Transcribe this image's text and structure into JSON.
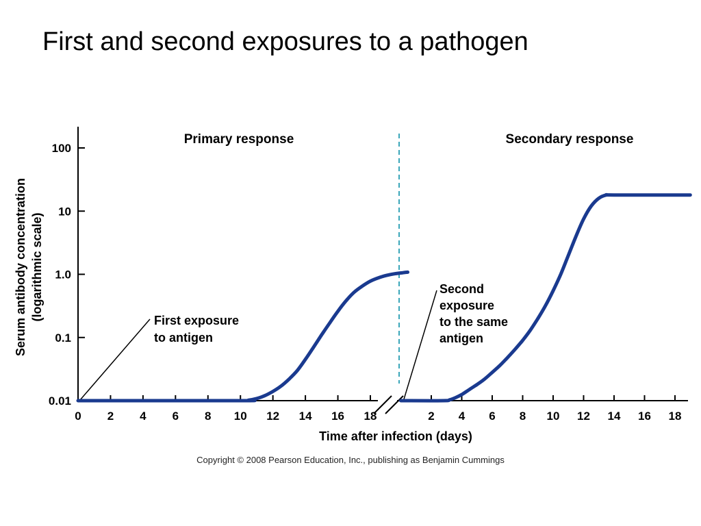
{
  "page": {
    "title": "First and second exposures to a pathogen",
    "copyright": "Copyright © 2008 Pearson Education, Inc., publishing as Benjamin Cummings"
  },
  "colors": {
    "curve": "#1a3a8f",
    "divider": "#3aa6b9",
    "axis": "#000000"
  },
  "chart_data": {
    "type": "line",
    "ylabel_line1": "Serum antibody concentration",
    "ylabel_line2": "(logarithmic scale)",
    "xlabel": "Time after infection (days)",
    "y_scale": "log",
    "y_ticks": [
      {
        "value": 100,
        "label": "100"
      },
      {
        "value": 10,
        "label": "10"
      },
      {
        "value": 1,
        "label": "1.0"
      },
      {
        "value": 0.1,
        "label": "0.1"
      },
      {
        "value": 0.01,
        "label": "0.01"
      }
    ],
    "ylim": [
      0.01,
      100
    ],
    "grid": false,
    "axis_break": true,
    "panels": [
      {
        "title": "Primary response",
        "xlim": [
          0,
          20.3
        ],
        "x_ticks": [
          {
            "value": 0,
            "label": "0"
          },
          {
            "value": 2,
            "label": "2"
          },
          {
            "value": 4,
            "label": "4"
          },
          {
            "value": 6,
            "label": "6"
          },
          {
            "value": 8,
            "label": "8"
          },
          {
            "value": 10,
            "label": "10"
          },
          {
            "value": 12,
            "label": "12"
          },
          {
            "value": 14,
            "label": "14"
          },
          {
            "value": 16,
            "label": "16"
          },
          {
            "value": 18,
            "label": "18"
          }
        ],
        "annotation": [
          "First exposure",
          "to antigen"
        ],
        "series": [
          {
            "x": [
              0,
              10,
              10.5,
              11,
              11.5,
              12,
              12.5,
              13,
              13.5,
              14,
              14.5,
              15,
              15.5,
              16,
              16.5,
              17,
              17.5,
              18,
              18.5,
              19,
              19.5,
              20,
              20.3
            ],
            "y": [
              0.01,
              0.01,
              0.0102,
              0.0108,
              0.012,
              0.014,
              0.017,
              0.022,
              0.03,
              0.045,
              0.07,
              0.11,
              0.17,
              0.26,
              0.38,
              0.52,
              0.65,
              0.78,
              0.88,
              0.96,
              1.02,
              1.06,
              1.08
            ]
          }
        ]
      },
      {
        "title": "Secondary response",
        "xlim": [
          0,
          19
        ],
        "x_ticks": [
          {
            "value": 2,
            "label": "2"
          },
          {
            "value": 4,
            "label": "4"
          },
          {
            "value": 6,
            "label": "6"
          },
          {
            "value": 8,
            "label": "8"
          },
          {
            "value": 10,
            "label": "10"
          },
          {
            "value": 12,
            "label": "12"
          },
          {
            "value": 14,
            "label": "14"
          },
          {
            "value": 16,
            "label": "16"
          },
          {
            "value": 18,
            "label": "18"
          }
        ],
        "annotation": [
          "Second",
          "exposure",
          "to the same",
          "antigen"
        ],
        "series": [
          {
            "x": [
              0,
              2.8,
              3.2,
              3.6,
              4,
              4.5,
              5,
              5.5,
              6,
              6.5,
              7,
              7.5,
              8,
              8.5,
              9,
              9.5,
              10,
              10.5,
              11,
              11.5,
              12,
              12.5,
              13,
              13.5,
              14,
              19
            ],
            "y": [
              0.01,
              0.01,
              0.0103,
              0.0112,
              0.0125,
              0.015,
              0.018,
              0.022,
              0.028,
              0.036,
              0.048,
              0.065,
              0.09,
              0.13,
              0.2,
              0.32,
              0.55,
              1.0,
              2.0,
              4.0,
              7.5,
              12,
              16,
              18,
              18,
              18
            ]
          }
        ]
      }
    ]
  }
}
